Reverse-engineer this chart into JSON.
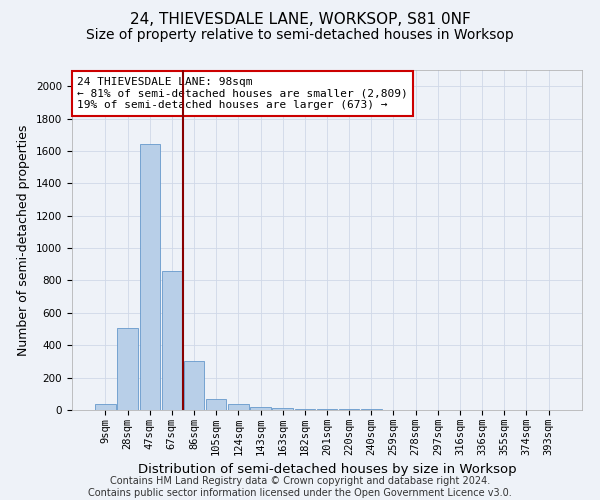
{
  "title": "24, THIEVESDALE LANE, WORKSOP, S81 0NF",
  "subtitle": "Size of property relative to semi-detached houses in Worksop",
  "xlabel": "Distribution of semi-detached houses by size in Worksop",
  "ylabel": "Number of semi-detached properties",
  "categories": [
    "9sqm",
    "28sqm",
    "47sqm",
    "67sqm",
    "86sqm",
    "105sqm",
    "124sqm",
    "143sqm",
    "163sqm",
    "182sqm",
    "201sqm",
    "220sqm",
    "240sqm",
    "259sqm",
    "278sqm",
    "297sqm",
    "316sqm",
    "336sqm",
    "355sqm",
    "374sqm",
    "393sqm"
  ],
  "values": [
    35,
    505,
    1640,
    860,
    300,
    70,
    40,
    20,
    15,
    8,
    8,
    8,
    5,
    3,
    2,
    2,
    1,
    0,
    0,
    0,
    0
  ],
  "bar_color": "#b8cfe8",
  "bar_edge_color": "#6699cc",
  "grid_color": "#d0d8e8",
  "background_color": "#eef2f8",
  "vline_x": 3.5,
  "vline_color": "#880000",
  "annotation_text": "24 THIEVESDALE LANE: 98sqm\n← 81% of semi-detached houses are smaller (2,809)\n19% of semi-detached houses are larger (673) →",
  "annotation_box_color": "#ffffff",
  "annotation_box_edge": "#cc0000",
  "footer_line1": "Contains HM Land Registry data © Crown copyright and database right 2024.",
  "footer_line2": "Contains public sector information licensed under the Open Government Licence v3.0.",
  "ylim": [
    0,
    2100
  ],
  "yticks": [
    0,
    200,
    400,
    600,
    800,
    1000,
    1200,
    1400,
    1600,
    1800,
    2000
  ],
  "title_fontsize": 11,
  "subtitle_fontsize": 10,
  "xlabel_fontsize": 9.5,
  "ylabel_fontsize": 9,
  "tick_fontsize": 7.5,
  "annotation_fontsize": 8,
  "footer_fontsize": 7
}
